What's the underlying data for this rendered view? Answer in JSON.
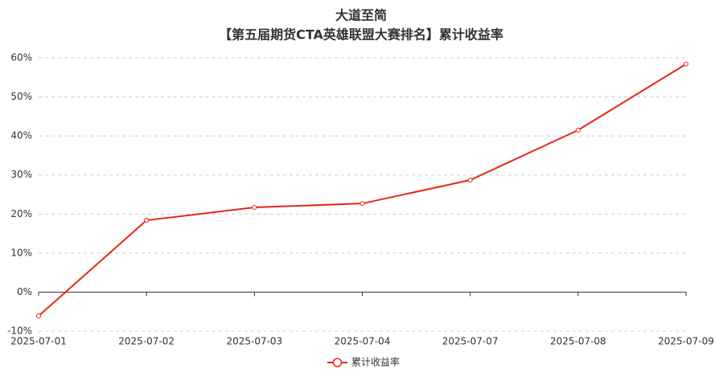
{
  "chart_data": {
    "type": "line",
    "title": "大道至简",
    "subtitle": "【第五届期货CTA英雄联盟大赛排名】累计收益率",
    "categories": [
      "2025-07-01",
      "2025-07-02",
      "2025-07-03",
      "2025-07-04",
      "2025-07-07",
      "2025-07-08",
      "2025-07-09"
    ],
    "series": [
      {
        "name": "累计收益率",
        "color": "#e8251b",
        "values": [
          -6.1,
          18.4,
          21.7,
          22.7,
          28.7,
          41.5,
          58.4
        ]
      }
    ],
    "ylim": [
      -10,
      60
    ],
    "yticks": [
      {
        "value": -10,
        "label": "-10%"
      },
      {
        "value": 0,
        "label": "0%"
      },
      {
        "value": 10,
        "label": "10%"
      },
      {
        "value": 20,
        "label": "20%"
      },
      {
        "value": 30,
        "label": "30%"
      },
      {
        "value": 40,
        "label": "40%"
      },
      {
        "value": 50,
        "label": "50%"
      },
      {
        "value": 60,
        "label": "60%"
      }
    ],
    "grid": true,
    "legend": "bottom"
  }
}
